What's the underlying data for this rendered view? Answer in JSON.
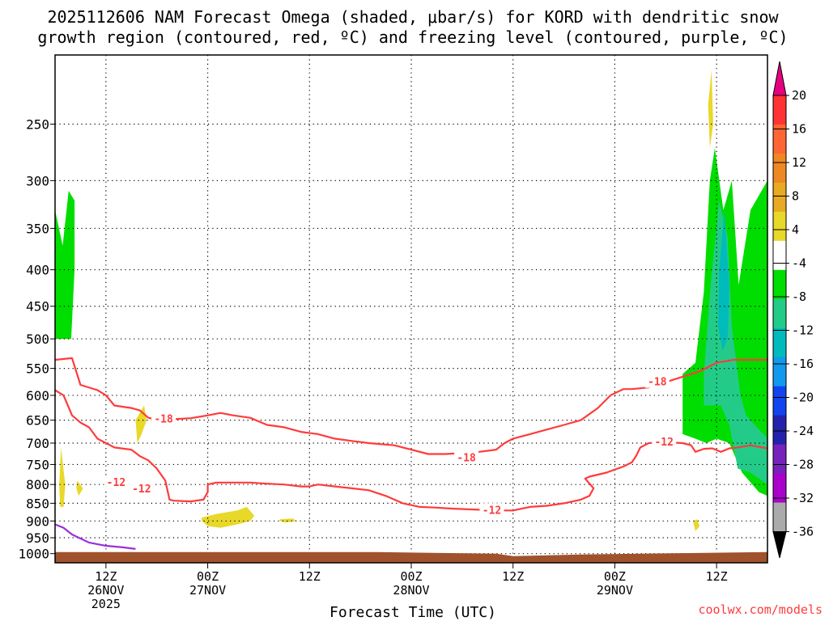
{
  "chart_data": {
    "type": "heatmap",
    "title": "2025112606 NAM Forecast Omega (shaded, μbar/s) for KORD with dendritic snow growth region (contoured, red, ºC) and freezing level (contoured, purple, ºC)",
    "title_lines": [
      "2025112606 NAM Forecast Omega (shaded, μbar/s) for KORD with dendritic snow",
      "growth region (contoured, red, ºC) and freezing level (contoured, purple, ºC)"
    ],
    "xlabel": "Forecast Time (UTC)",
    "ylabel": "",
    "x_unit": "hours since 2025-11-26 06Z",
    "xlim": [
      0,
      84
    ],
    "ylim": [
      1030,
      200
    ],
    "y_ticks": [
      250,
      300,
      350,
      400,
      450,
      500,
      550,
      600,
      650,
      700,
      750,
      800,
      850,
      900,
      950,
      1000
    ],
    "x_ticks": [
      {
        "x": 6,
        "lines": [
          "12Z",
          "26NOV",
          "2025"
        ]
      },
      {
        "x": 18,
        "lines": [
          "00Z",
          "27NOV"
        ]
      },
      {
        "x": 30,
        "lines": [
          "12Z"
        ]
      },
      {
        "x": 42,
        "lines": [
          "00Z",
          "28NOV"
        ]
      },
      {
        "x": 54,
        "lines": [
          "12Z"
        ]
      },
      {
        "x": 66,
        "lines": [
          "00Z",
          "29NOV"
        ]
      },
      {
        "x": 78,
        "lines": [
          "12Z"
        ]
      }
    ],
    "grid": true,
    "credit": "coolwx.com/models",
    "colorbar": {
      "labels": [
        "20",
        "16",
        "12",
        "8",
        "4",
        "-4",
        "-8",
        "-12",
        "-16",
        "-20",
        "-24",
        "-28",
        "-32",
        "-36"
      ],
      "colors": [
        "#e8007f",
        "#ff3333",
        "#ff6633",
        "#ee8822",
        "#e8aa22",
        "#e8d82a",
        "#ffffff",
        "#00dd00",
        "#22cc88",
        "#00bbbb",
        "#1199ee",
        "#1144ee",
        "#2222aa",
        "#7722bb",
        "#aa00cc",
        "#aaaaaa",
        "#000000"
      ]
    },
    "ground": {
      "color": "#a0522d",
      "top_pressure": 995
    },
    "omega_regions": [
      {
        "level": "-4 to -8",
        "color": "#00dd00",
        "points": [
          [
            0,
            330
          ],
          [
            0.9,
            370
          ],
          [
            1.6,
            310
          ],
          [
            2.3,
            320
          ],
          [
            2.3,
            400
          ],
          [
            1.9,
            500
          ],
          [
            0,
            500
          ]
        ]
      },
      {
        "level": "-4 to -8",
        "color": "#00dd00",
        "points": [
          [
            74,
            560
          ],
          [
            75.5,
            540
          ],
          [
            76.5,
            430
          ],
          [
            77.2,
            300
          ],
          [
            77.8,
            270
          ],
          [
            78.8,
            330
          ],
          [
            79.8,
            300
          ],
          [
            80.6,
            420
          ],
          [
            82,
            330
          ],
          [
            84,
            300
          ],
          [
            84,
            830
          ],
          [
            83,
            820
          ],
          [
            81,
            770
          ],
          [
            79.5,
            700
          ],
          [
            78,
            690
          ],
          [
            76.8,
            700
          ],
          [
            75.5,
            690
          ],
          [
            74,
            680
          ]
        ]
      },
      {
        "level": "-8 to -12",
        "color": "#22cc88",
        "points": [
          [
            76.5,
            560
          ],
          [
            77.3,
            420
          ],
          [
            78.3,
            320
          ],
          [
            79.3,
            360
          ],
          [
            79.8,
            480
          ],
          [
            80.8,
            600
          ],
          [
            81.5,
            640
          ],
          [
            82.5,
            660
          ],
          [
            84,
            690
          ],
          [
            84,
            800
          ],
          [
            82,
            770
          ],
          [
            80.5,
            760
          ],
          [
            79.5,
            660
          ],
          [
            78.5,
            620
          ],
          [
            76.5,
            620
          ]
        ]
      },
      {
        "level": "-12 to -16",
        "color": "#00bbbb",
        "points": [
          [
            78.3,
            400
          ],
          [
            78.9,
            330
          ],
          [
            79.5,
            420
          ],
          [
            79.3,
            500
          ],
          [
            78.7,
            520
          ],
          [
            78.2,
            480
          ]
        ]
      },
      {
        "level": "4 to 8",
        "color": "#e8d82a",
        "points": [
          [
            0.7,
            710
          ],
          [
            1.2,
            800
          ],
          [
            1.0,
            860
          ],
          [
            0.6,
            860
          ],
          [
            0.5,
            800
          ]
        ]
      },
      {
        "level": "4 to 8",
        "color": "#e8d82a",
        "points": [
          [
            2.6,
            790
          ],
          [
            3.3,
            810
          ],
          [
            2.8,
            830
          ],
          [
            2.5,
            810
          ]
        ]
      },
      {
        "level": "4 to 8",
        "color": "#e8d82a",
        "points": [
          [
            9.5,
            650
          ],
          [
            10.5,
            620
          ],
          [
            10.8,
            650
          ],
          [
            10.2,
            680
          ],
          [
            9.7,
            700
          ]
        ]
      },
      {
        "level": "4 to 8",
        "color": "#e8d82a",
        "points": [
          [
            17.3,
            890
          ],
          [
            19,
            880
          ],
          [
            21.5,
            870
          ],
          [
            22.6,
            860
          ],
          [
            23.5,
            885
          ],
          [
            23,
            900
          ],
          [
            21.5,
            910
          ],
          [
            19.5,
            920
          ],
          [
            18,
            915
          ],
          [
            17.3,
            900
          ]
        ]
      },
      {
        "level": "4 to 8",
        "color": "#e8d82a",
        "points": [
          [
            26.5,
            895
          ],
          [
            28,
            893
          ],
          [
            28.5,
            900
          ],
          [
            27.2,
            905
          ],
          [
            26.5,
            900
          ]
        ]
      },
      {
        "level": "4 to 8",
        "color": "#e8d82a",
        "points": [
          [
            77,
            235
          ],
          [
            77.4,
            210
          ],
          [
            77.6,
            250
          ],
          [
            77.2,
            270
          ]
        ]
      },
      {
        "level": "4 to 8",
        "color": "#e8d82a",
        "points": [
          [
            75.2,
            900
          ],
          [
            75.7,
            895
          ],
          [
            76,
            915
          ],
          [
            75.5,
            930
          ]
        ]
      }
    ],
    "contours": [
      {
        "label": "-18",
        "color": "#ff3b3b",
        "label_at": [
          12.8,
          648
        ],
        "points": [
          [
            0,
            535
          ],
          [
            2,
            532
          ],
          [
            3,
            580
          ],
          [
            5,
            590
          ],
          [
            6,
            600
          ],
          [
            7,
            620
          ],
          [
            9,
            625
          ],
          [
            10,
            630
          ],
          [
            11,
            645
          ],
          [
            12.5,
            650
          ],
          [
            14,
            648
          ],
          [
            16,
            646
          ],
          [
            18,
            640
          ],
          [
            19.5,
            635
          ],
          [
            21,
            640
          ],
          [
            23,
            645
          ],
          [
            25,
            660
          ],
          [
            27,
            665
          ],
          [
            29,
            675
          ],
          [
            31,
            680
          ],
          [
            33,
            690
          ],
          [
            35,
            695
          ],
          [
            37,
            700
          ],
          [
            40,
            705
          ],
          [
            42,
            715
          ],
          [
            44,
            725
          ],
          [
            46,
            725
          ],
          [
            48,
            723
          ],
          [
            50,
            720
          ],
          [
            52,
            715
          ],
          [
            53,
            700
          ],
          [
            54,
            690
          ],
          [
            56,
            680
          ],
          [
            58,
            670
          ],
          [
            60,
            660
          ],
          [
            62,
            650
          ],
          [
            64,
            625
          ],
          [
            65.5,
            600
          ],
          [
            67,
            588
          ],
          [
            68,
            588
          ],
          [
            70,
            585
          ],
          [
            72,
            575
          ],
          [
            74,
            565
          ],
          [
            76,
            555
          ],
          [
            78,
            540
          ],
          [
            80,
            535
          ],
          [
            84,
            535
          ]
        ]
      },
      {
        "label": "-12",
        "color": "#ff3b3b",
        "label_at": [
          7.2,
          795
        ],
        "points": [
          [
            0,
            590
          ],
          [
            1,
            600
          ],
          [
            2,
            640
          ],
          [
            3,
            655
          ],
          [
            4,
            665
          ],
          [
            5,
            690
          ],
          [
            7,
            710
          ],
          [
            9,
            715
          ],
          [
            10,
            730
          ],
          [
            11,
            740
          ],
          [
            12,
            760
          ],
          [
            13,
            790
          ],
          [
            13.5,
            840
          ],
          [
            14,
            843
          ],
          [
            16,
            845
          ],
          [
            17.5,
            840
          ],
          [
            18,
            820
          ],
          [
            18,
            800
          ],
          [
            19,
            795
          ],
          [
            21,
            795
          ],
          [
            23,
            795
          ],
          [
            25,
            798
          ],
          [
            27,
            800
          ],
          [
            29,
            805
          ],
          [
            30,
            805
          ],
          [
            31,
            800
          ],
          [
            33,
            805
          ],
          [
            35,
            810
          ],
          [
            37,
            815
          ],
          [
            39,
            830
          ],
          [
            41,
            850
          ],
          [
            43,
            860
          ],
          [
            45,
            862
          ],
          [
            47,
            865
          ],
          [
            50,
            868
          ],
          [
            52,
            870
          ],
          [
            54,
            870
          ],
          [
            56,
            860
          ],
          [
            58,
            857
          ],
          [
            60,
            850
          ],
          [
            62,
            840
          ],
          [
            63,
            830
          ],
          [
            63.5,
            810
          ],
          [
            62.5,
            785
          ],
          [
            63,
            780
          ],
          [
            65,
            770
          ],
          [
            67,
            755
          ],
          [
            68,
            745
          ],
          [
            68.5,
            730
          ],
          [
            69,
            710
          ],
          [
            70,
            700
          ],
          [
            72,
            698
          ],
          [
            74,
            700
          ],
          [
            75,
            705
          ],
          [
            75.5,
            720
          ],
          [
            76.5,
            713
          ],
          [
            77.5,
            712
          ],
          [
            78.5,
            720
          ],
          [
            79.5,
            712
          ],
          [
            80.5,
            710
          ],
          [
            82,
            705
          ],
          [
            84,
            712
          ]
        ]
      }
    ],
    "extra_labels": [
      {
        "text": "-12",
        "at": [
          10.2,
          812
        ]
      },
      {
        "text": "-18",
        "at": [
          48.5,
          735
        ]
      },
      {
        "text": "-12",
        "at": [
          51.5,
          870
        ]
      },
      {
        "text": "-18",
        "at": [
          71,
          575
        ]
      },
      {
        "text": "-12",
        "at": [
          71.8,
          698
        ]
      }
    ],
    "freezing_level": {
      "color": "#9b30d9",
      "points": [
        [
          0,
          910
        ],
        [
          1,
          920
        ],
        [
          2,
          940
        ],
        [
          4,
          965
        ],
        [
          6,
          975
        ],
        [
          8,
          980
        ],
        [
          9.5,
          985
        ]
      ]
    }
  }
}
